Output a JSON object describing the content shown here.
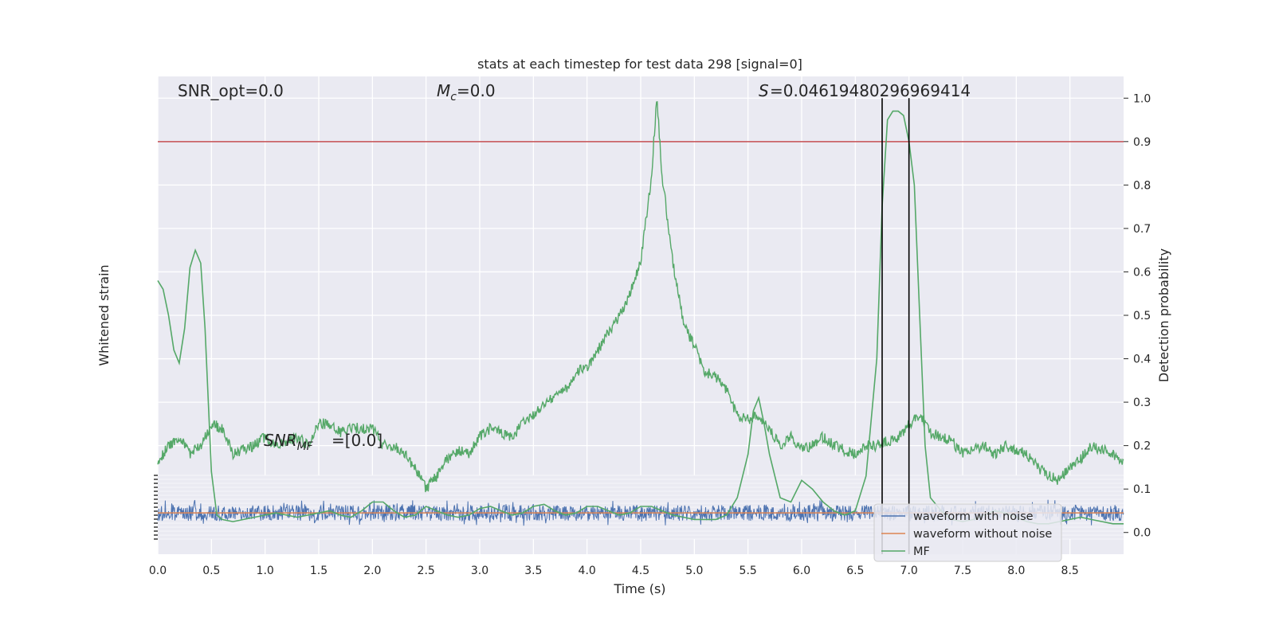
{
  "chart_data": {
    "type": "line",
    "title": "stats at each timestep for test data 298 [signal=0]",
    "xlabel": "Time (s)",
    "ylabel_left": "Whitened strain",
    "ylabel_right": "Detection probability",
    "xlim": [
      0.0,
      9.0
    ],
    "ylim_right": [
      -0.05,
      1.05
    ],
    "x_ticks": [
      "0.0",
      "0.5",
      "1.0",
      "1.5",
      "2.0",
      "2.5",
      "3.0",
      "3.5",
      "4.0",
      "4.5",
      "5.0",
      "5.5",
      "6.0",
      "6.5",
      "7.0",
      "7.5",
      "8.0",
      "8.5"
    ],
    "y_right_ticks": [
      "0.0",
      "0.1",
      "0.2",
      "0.3",
      "0.4",
      "0.5",
      "0.6",
      "0.7",
      "0.8",
      "0.9",
      "1.0"
    ],
    "grid": true,
    "threshold": 0.9,
    "threshold_color": "#c44e52",
    "detection_window": [
      6.75,
      7.0
    ],
    "annotations": {
      "snr_opt": "SNR_opt=0.0",
      "mc": "=0.0",
      "s_stat": "=0.046194802969694​14",
      "snr_mf_sub": "MF",
      "snr_mf_val": "=[0.0]"
    },
    "legend": {
      "position": "bottom-right",
      "entries": [
        "waveform with noise",
        "waveform without noise",
        "MF"
      ]
    },
    "colors": {
      "noise": "#4c72b0",
      "clean": "#dd8452",
      "mf": "#55a868",
      "background": "#eaeaf2"
    },
    "series": [
      {
        "name": "MF",
        "x": [
          0.0,
          0.05,
          0.1,
          0.15,
          0.2,
          0.25,
          0.3,
          0.35,
          0.4,
          0.44,
          0.5,
          0.55,
          0.6,
          0.7,
          0.8,
          0.9,
          1.0,
          1.1,
          1.2,
          1.3,
          1.4,
          1.5,
          1.6,
          1.7,
          1.8,
          1.9,
          2.0,
          2.1,
          2.2,
          2.3,
          2.4,
          2.5,
          2.6,
          2.7,
          2.8,
          2.9,
          3.0,
          3.1,
          3.2,
          3.3,
          3.4,
          3.5,
          3.6,
          3.7,
          3.8,
          3.9,
          4.0,
          4.1,
          4.2,
          4.3,
          4.4,
          4.5,
          4.6,
          4.7,
          4.8,
          4.9,
          5.0,
          5.1,
          5.2,
          5.3,
          5.4,
          5.5,
          5.55,
          5.6,
          5.65,
          5.7,
          5.8,
          5.9,
          6.0,
          6.1,
          6.2,
          6.3,
          6.4,
          6.5,
          6.6,
          6.7,
          6.75,
          6.8,
          6.85,
          6.9,
          6.95,
          7.0,
          7.05,
          7.1,
          7.15,
          7.2,
          7.3,
          7.4,
          7.5,
          7.6,
          7.7,
          7.8,
          7.9,
          8.0,
          8.1,
          8.2,
          8.3,
          8.4,
          8.5,
          8.6,
          8.7,
          8.8,
          8.9,
          9.0
        ],
        "y": [
          0.58,
          0.56,
          0.5,
          0.42,
          0.39,
          0.47,
          0.61,
          0.65,
          0.62,
          0.47,
          0.14,
          0.04,
          0.03,
          0.025,
          0.03,
          0.035,
          0.04,
          0.045,
          0.04,
          0.035,
          0.04,
          0.045,
          0.05,
          0.04,
          0.035,
          0.05,
          0.07,
          0.07,
          0.05,
          0.035,
          0.04,
          0.06,
          0.05,
          0.04,
          0.035,
          0.04,
          0.055,
          0.06,
          0.05,
          0.04,
          0.045,
          0.06,
          0.065,
          0.05,
          0.04,
          0.045,
          0.06,
          0.06,
          0.05,
          0.04,
          0.045,
          0.06,
          0.06,
          0.05,
          0.04,
          0.035,
          0.03,
          0.03,
          0.03,
          0.04,
          0.08,
          0.18,
          0.28,
          0.31,
          0.25,
          0.18,
          0.08,
          0.07,
          0.12,
          0.1,
          0.07,
          0.05,
          0.04,
          0.05,
          0.13,
          0.4,
          0.75,
          0.95,
          0.97,
          0.97,
          0.96,
          0.9,
          0.8,
          0.5,
          0.2,
          0.08,
          0.05,
          0.03,
          0.025,
          0.03,
          0.04,
          0.05,
          0.045,
          0.035,
          0.025,
          0.02,
          0.02,
          0.025,
          0.03,
          0.035,
          0.03,
          0.025,
          0.02,
          0.02
        ]
      },
      {
        "name": "Detection probability",
        "x": [
          0.0,
          0.1,
          0.2,
          0.3,
          0.4,
          0.5,
          0.6,
          0.7,
          0.8,
          0.9,
          1.0,
          1.1,
          1.2,
          1.3,
          1.4,
          1.5,
          1.6,
          1.7,
          1.8,
          1.9,
          2.0,
          2.1,
          2.2,
          2.3,
          2.4,
          2.5,
          2.6,
          2.7,
          2.8,
          2.9,
          3.0,
          3.1,
          3.2,
          3.3,
          3.4,
          3.5,
          3.6,
          3.7,
          3.8,
          3.9,
          4.0,
          4.1,
          4.2,
          4.3,
          4.4,
          4.5,
          4.6,
          4.65,
          4.7,
          4.8,
          4.9,
          5.0,
          5.1,
          5.2,
          5.3,
          5.4,
          5.5,
          5.6,
          5.7,
          5.8,
          5.9,
          6.0,
          6.1,
          6.2,
          6.3,
          6.4,
          6.5,
          6.6,
          6.7,
          6.8,
          6.9,
          7.0,
          7.1,
          7.2,
          7.3,
          7.4,
          7.5,
          7.6,
          7.7,
          7.8,
          7.9,
          8.0,
          8.1,
          8.2,
          8.3,
          8.4,
          8.5,
          8.6,
          8.7,
          8.8,
          8.9,
          9.0
        ],
        "y": [
          0.16,
          0.2,
          0.22,
          0.18,
          0.2,
          0.25,
          0.24,
          0.18,
          0.19,
          0.2,
          0.22,
          0.2,
          0.21,
          0.22,
          0.2,
          0.25,
          0.25,
          0.23,
          0.24,
          0.24,
          0.24,
          0.2,
          0.2,
          0.18,
          0.15,
          0.1,
          0.13,
          0.17,
          0.19,
          0.18,
          0.22,
          0.24,
          0.23,
          0.22,
          0.25,
          0.27,
          0.3,
          0.31,
          0.33,
          0.37,
          0.38,
          0.42,
          0.46,
          0.5,
          0.55,
          0.62,
          0.82,
          1.0,
          0.82,
          0.62,
          0.48,
          0.43,
          0.37,
          0.36,
          0.33,
          0.27,
          0.26,
          0.27,
          0.24,
          0.2,
          0.22,
          0.19,
          0.2,
          0.22,
          0.2,
          0.19,
          0.18,
          0.2,
          0.2,
          0.21,
          0.22,
          0.25,
          0.27,
          0.23,
          0.22,
          0.21,
          0.18,
          0.19,
          0.2,
          0.18,
          0.2,
          0.19,
          0.18,
          0.15,
          0.13,
          0.12,
          0.15,
          0.17,
          0.2,
          0.19,
          0.18,
          0.16
        ]
      },
      {
        "name": "waveform with noise",
        "level": 0.045,
        "spread": 0.018
      },
      {
        "name": "waveform without noise",
        "level": 0.045
      }
    ]
  }
}
